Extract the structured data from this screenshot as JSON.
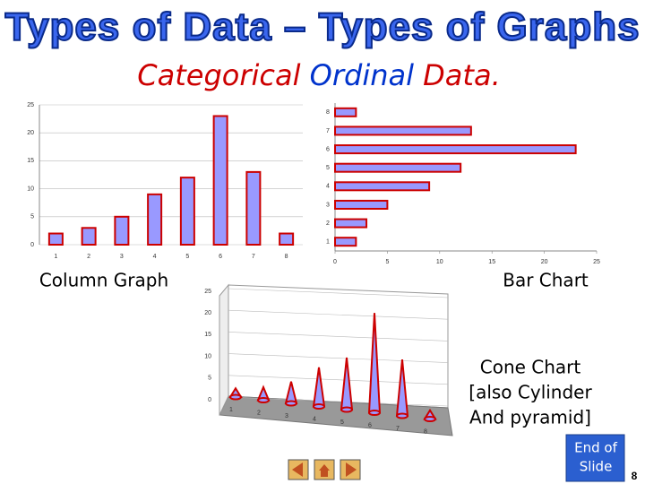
{
  "header": {
    "title": "Types of Data – Types of Graphs",
    "subtitle": [
      "Categorical",
      "Ordinal",
      "Data."
    ]
  },
  "chart_data": [
    {
      "type": "bar",
      "title": "Column Graph",
      "categories": [
        "1",
        "2",
        "3",
        "4",
        "5",
        "6",
        "7",
        "8"
      ],
      "values": [
        2,
        3,
        5,
        9,
        12,
        23,
        13,
        2
      ],
      "color": "#9999ff",
      "ylim": [
        0,
        25
      ],
      "yticks": [
        0,
        5,
        10,
        15,
        20,
        25
      ],
      "grid": true
    },
    {
      "type": "barh",
      "title": "Bar Chart",
      "categories": [
        "1",
        "2",
        "3",
        "4",
        "5",
        "6",
        "7",
        "8"
      ],
      "values": [
        2,
        3,
        5,
        9,
        12,
        23,
        13,
        2
      ],
      "color": "#9999ff",
      "xlim": [
        0,
        25
      ],
      "xticks": [
        0,
        5,
        10,
        15,
        20,
        25
      ],
      "grid": false
    },
    {
      "type": "cone",
      "title": [
        "Cone Chart",
        "[also Cylinder",
        "And pyramid]"
      ],
      "categories": [
        "1",
        "2",
        "3",
        "4",
        "5",
        "6",
        "7",
        "8"
      ],
      "values": [
        2,
        3,
        5,
        9,
        12,
        23,
        13,
        2
      ],
      "color": "#9999ff",
      "ylim": [
        0,
        25
      ],
      "yticks": [
        0,
        5,
        10,
        15,
        20,
        25
      ],
      "grid": true
    }
  ],
  "footer": {
    "button": [
      "End of",
      "Slide"
    ],
    "page": "8"
  }
}
